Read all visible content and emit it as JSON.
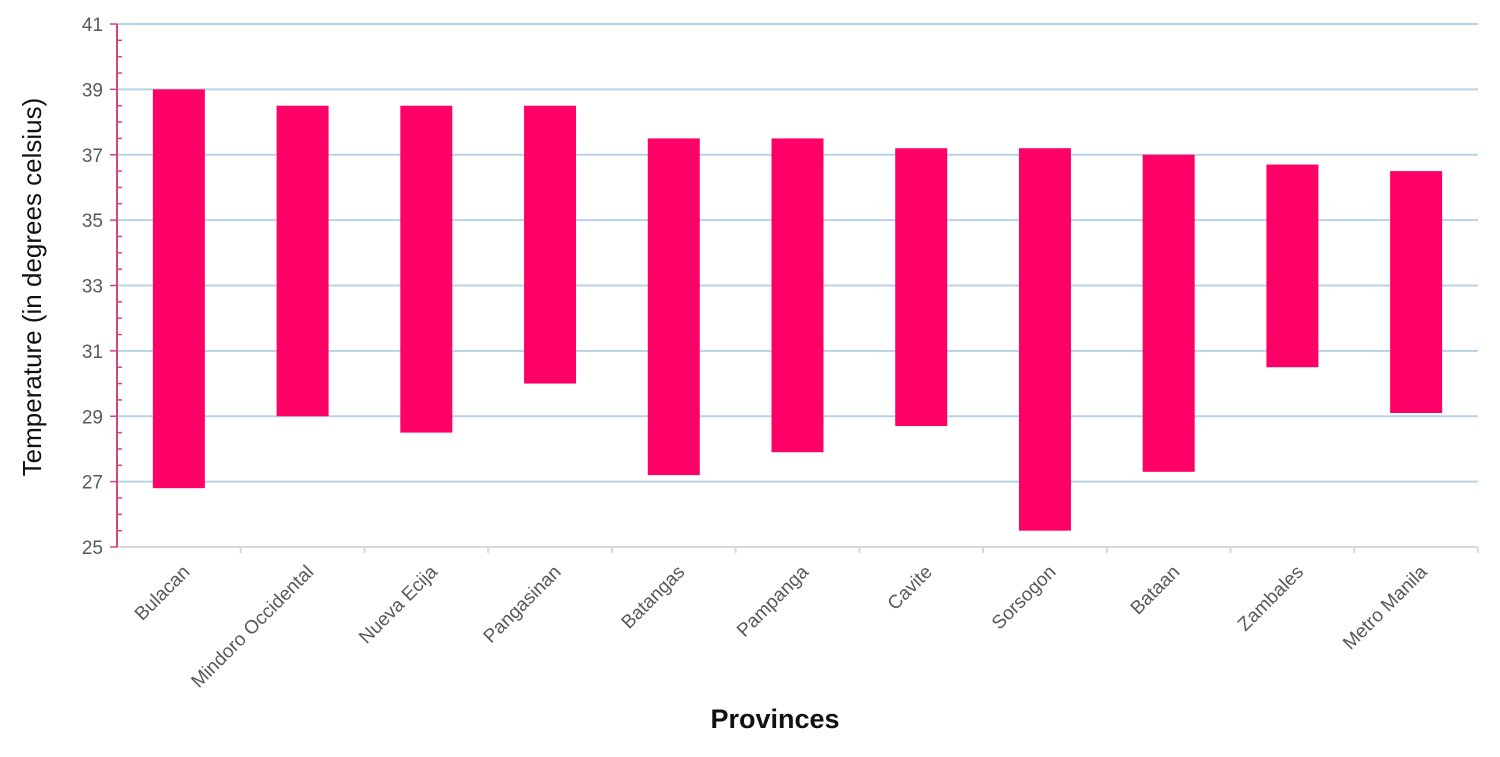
{
  "chart_data": {
    "type": "bar",
    "subtype": "floating-range",
    "title": "",
    "xlabel": "Provinces",
    "ylabel": "Temperature (in degrees celsius)",
    "ylim": [
      25,
      41
    ],
    "yticks": [
      25,
      27,
      29,
      31,
      33,
      35,
      37,
      39,
      41
    ],
    "grid": true,
    "legend": "none",
    "categories": [
      "Bulacan",
      "Mindoro Occidental",
      "Nueva Ecija",
      "Pangasinan",
      "Batangas",
      "Pampanga",
      "Cavite",
      "Sorsogon",
      "Bataan",
      "Zambales",
      "Metro Manila"
    ],
    "series": [
      {
        "low": [
          26.8,
          29.0,
          28.5,
          30.0,
          27.2,
          27.9,
          28.7,
          25.5,
          27.3,
          30.5,
          29.1
        ],
        "high": [
          39.0,
          38.5,
          38.5,
          38.5,
          37.5,
          37.5,
          37.2,
          37.2,
          37.0,
          36.7,
          36.5
        ]
      }
    ],
    "colors": {
      "bar": "#ff0066",
      "grid": "#b8d2ea",
      "axis_y": "#d0457f",
      "axis_x": "#d9d9d9",
      "tick_text": "#595959"
    }
  }
}
